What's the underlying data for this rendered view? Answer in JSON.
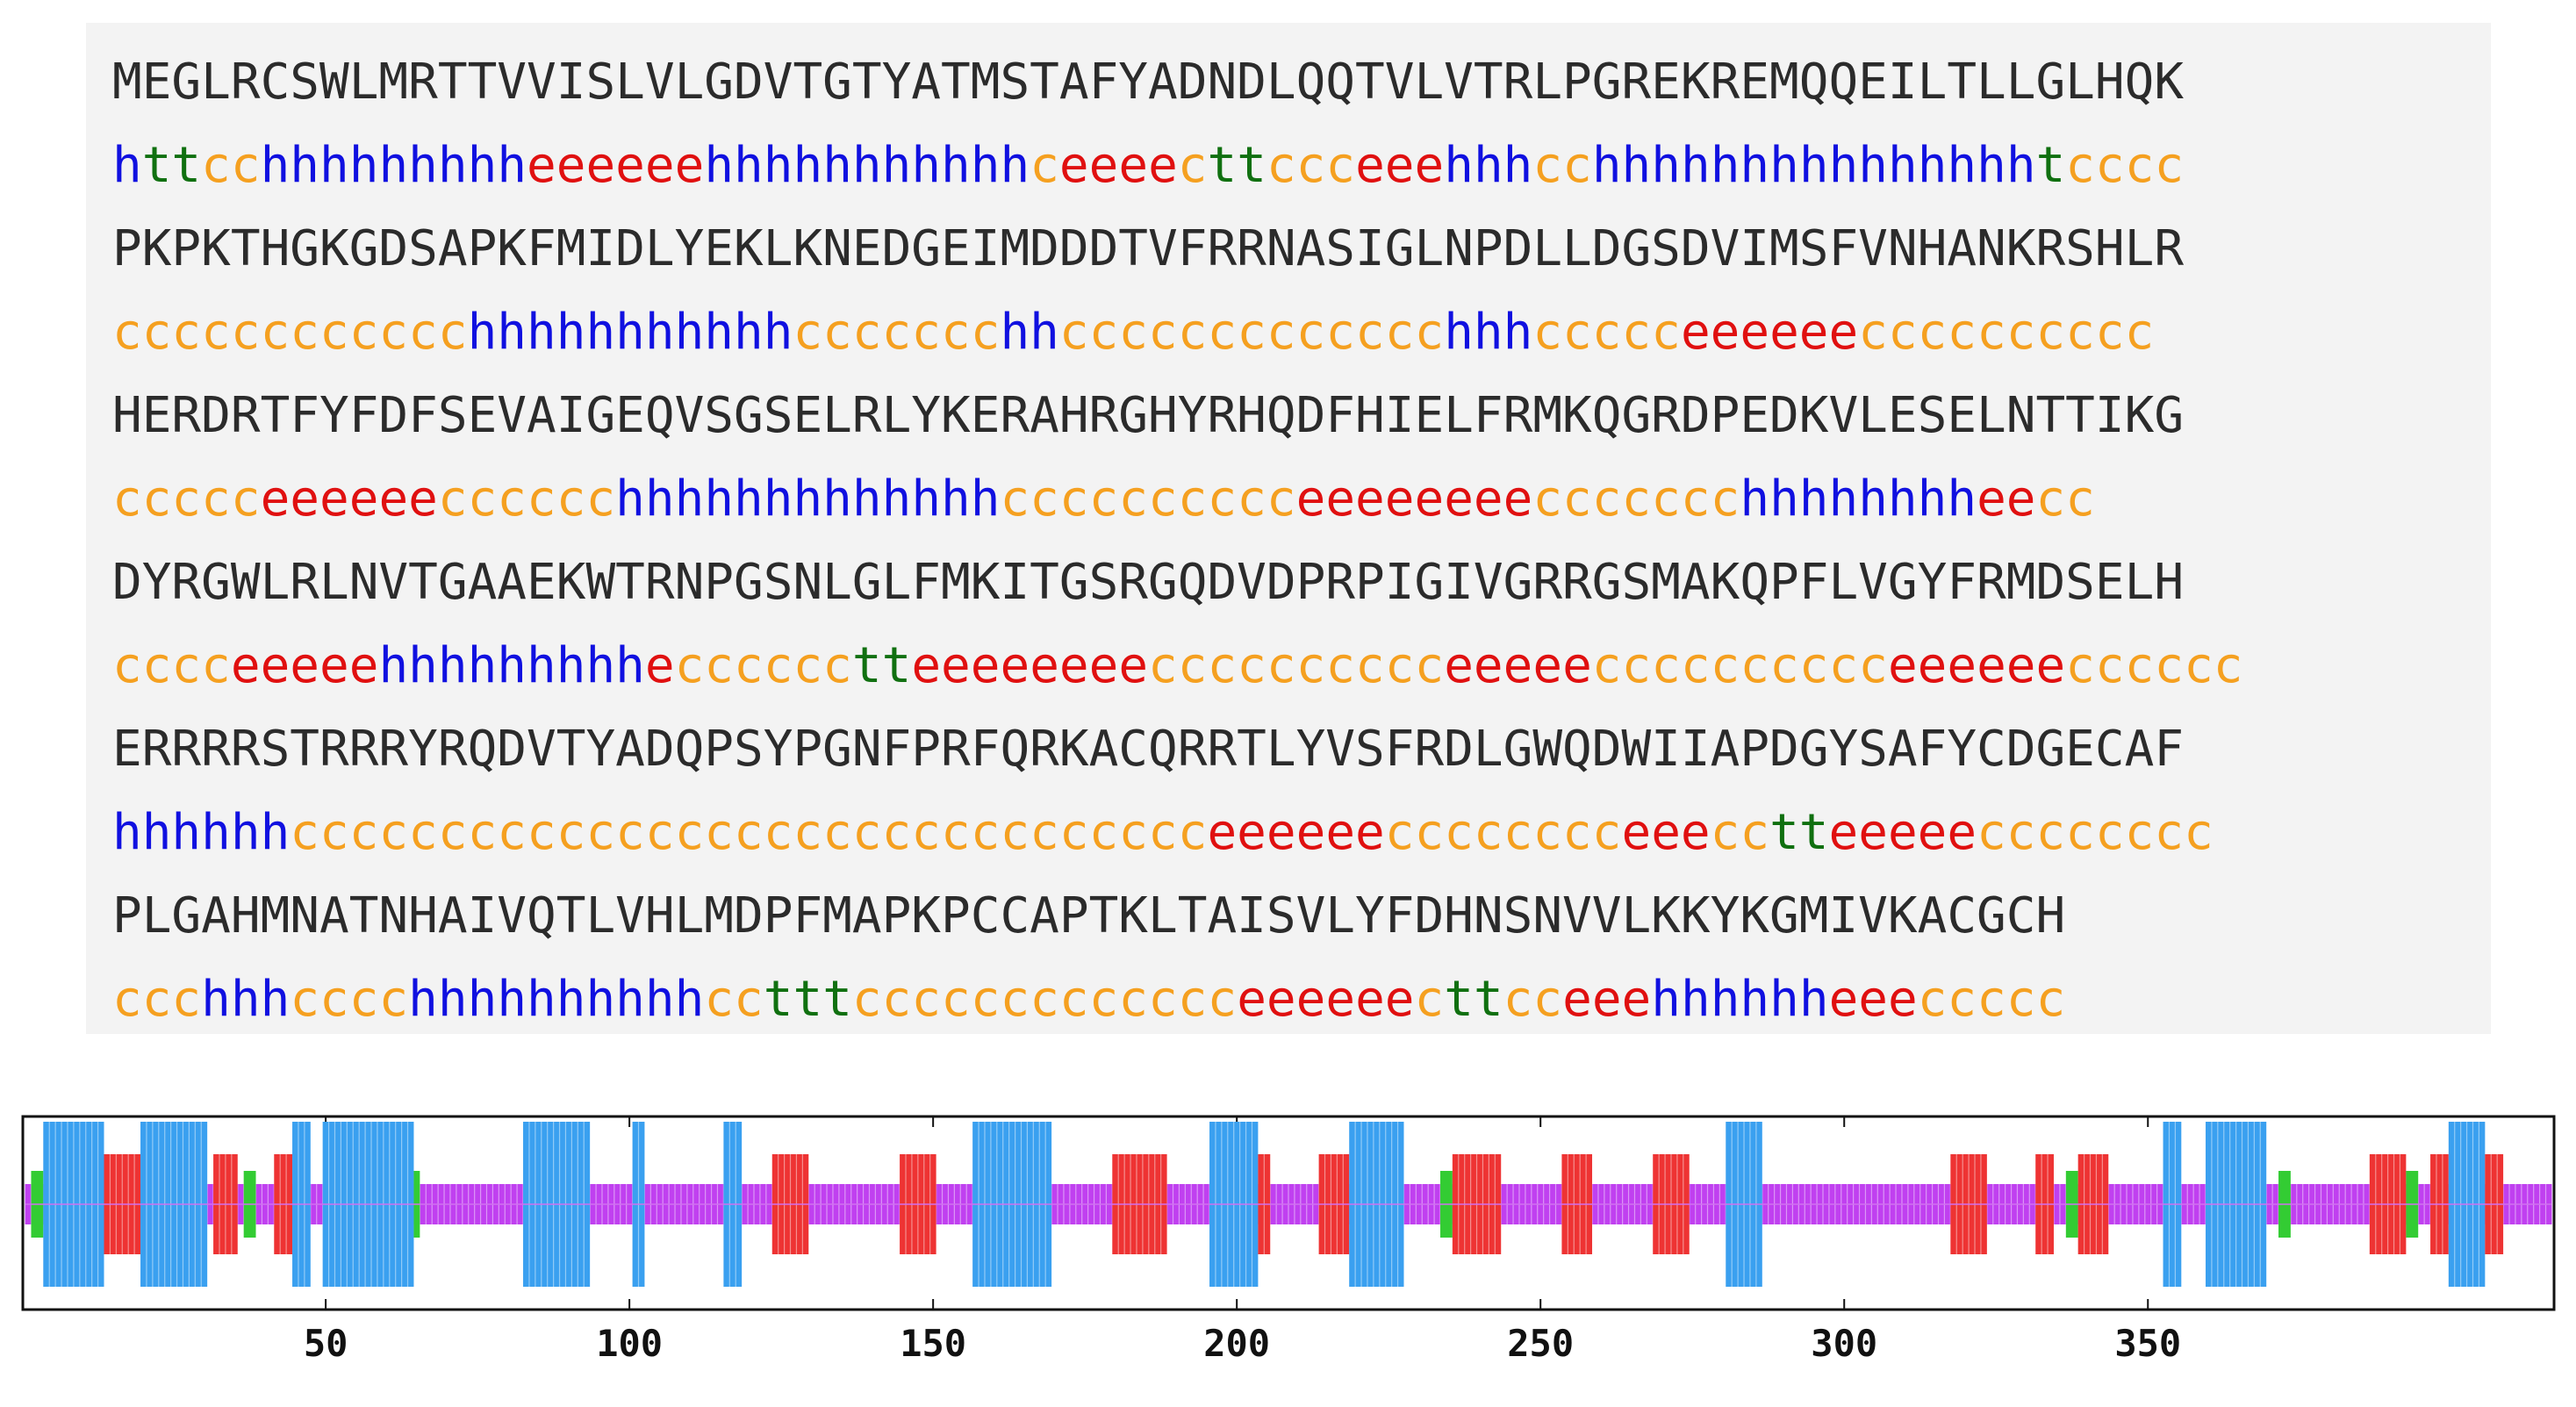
{
  "sequence_rows": [
    "MEGLRCSWLMRTTVVISLVLGDVTGTYATMSTAFYADNDLQQTVLVTRLPGREKREMQQEILTLLGLHQK",
    "PKPKTHGKGDSAPKFMIDLYEKLKNEDGEIMDDDTVFRRNASIGLNPDLLDGSDVIMSFVNHANKRSHLR",
    "HERDRTFYFDFSEVAIGEQVSGSELRLYKERAHRGHYRHQDFHIELFRMKQGRDPEDKVLESELNTTIKG",
    "DYRGWLRLNVTGAAEKWTRNPGSNLGLFMKITGSRGQDVDPRPIGIVGRRGSMAKQPFLVGYFRMDSELH",
    "ERRRRSTRRRYRQDVTYADQPSYPGNFPRFQRKACQRRTLYVSFRDLGWQDWIIAPDGYSAFYCDGECAF",
    "PLGAHMNATNHAIVQTLVHLMDPFMAPKPCCAPTKLTAISVLYFDHNSNVVLKKYKGMIVKACGCH"
  ],
  "structure_rows": [
    "httcchhhhhhhhheeeeeehhhhhhhhhhhceeeecttccceeehhhcchhhhhhhhhhhhhhhtcccc",
    "cccccccccccchhhhhhhhhhhccccccchhccccccccccccchhhccccceeeeeecccccccccc",
    "ccccceeeeeecccccchhhhhhhhhhhhhcccccccccceeeeeeeeccccccchhhhhhhheecc",
    "cccceeeeehhhhhhhhhecccccctteeeeeeeecccccccccceeeeecccccccccceeeeeecccccc",
    "hhhhhhccccccccccccccccccccccccccccccceeeeeecccccccceeecctteeeeecccccccc",
    "ccchhhcccchhhhhhhhhhcctttccccccccccccceeeeeecttcceeehhhhhheeeccccc"
  ],
  "legend_colors": {
    "helix": "#1010e0",
    "strand": "#e01010",
    "turn": "#107010",
    "coil": "#f5a020"
  },
  "chart_data": {
    "type": "bar",
    "categories": [
      "helix",
      "strand",
      "turn",
      "coil"
    ],
    "xlim": [
      1,
      416
    ],
    "x_ticks": [
      50,
      100,
      150,
      200,
      250,
      300,
      350
    ],
    "colors": {
      "helix": "#3aa0f0",
      "strand": "#ee3333",
      "turn": "#33cc33",
      "coil": "#c040f0"
    },
    "segments": [
      {
        "type": "coil",
        "start": 1,
        "end": 416
      },
      {
        "type": "turn",
        "start": 2,
        "end": 3
      },
      {
        "type": "helix",
        "start": 4,
        "end": 13
      },
      {
        "type": "strand",
        "start": 14,
        "end": 19
      },
      {
        "type": "helix",
        "start": 20,
        "end": 30
      },
      {
        "type": "strand",
        "start": 32,
        "end": 35
      },
      {
        "type": "turn",
        "start": 37,
        "end": 38
      },
      {
        "type": "strand",
        "start": 42,
        "end": 44
      },
      {
        "type": "helix",
        "start": 45,
        "end": 47
      },
      {
        "type": "helix",
        "start": 50,
        "end": 64
      },
      {
        "type": "turn",
        "start": 65,
        "end": 65
      },
      {
        "type": "helix",
        "start": 83,
        "end": 93
      },
      {
        "type": "helix",
        "start": 101,
        "end": 102
      },
      {
        "type": "helix",
        "start": 116,
        "end": 118
      },
      {
        "type": "strand",
        "start": 124,
        "end": 129
      },
      {
        "type": "strand",
        "start": 145,
        "end": 150
      },
      {
        "type": "helix",
        "start": 157,
        "end": 169
      },
      {
        "type": "strand",
        "start": 180,
        "end": 188
      },
      {
        "type": "helix",
        "start": 196,
        "end": 203
      },
      {
        "type": "strand",
        "start": 204,
        "end": 205
      },
      {
        "type": "strand",
        "start": 214,
        "end": 218
      },
      {
        "type": "helix",
        "start": 219,
        "end": 227
      },
      {
        "type": "turn",
        "start": 234,
        "end": 235
      },
      {
        "type": "strand",
        "start": 236,
        "end": 243
      },
      {
        "type": "strand",
        "start": 254,
        "end": 258
      },
      {
        "type": "strand",
        "start": 269,
        "end": 274
      },
      {
        "type": "helix",
        "start": 281,
        "end": 286
      },
      {
        "type": "strand",
        "start": 318,
        "end": 323
      },
      {
        "type": "strand",
        "start": 332,
        "end": 334
      },
      {
        "type": "turn",
        "start": 337,
        "end": 338
      },
      {
        "type": "strand",
        "start": 339,
        "end": 343
      },
      {
        "type": "helix",
        "start": 353,
        "end": 355
      },
      {
        "type": "helix",
        "start": 360,
        "end": 369
      },
      {
        "type": "turn",
        "start": 372,
        "end": 373
      },
      {
        "type": "strand",
        "start": 387,
        "end": 392
      },
      {
        "type": "turn",
        "start": 393,
        "end": 394
      },
      {
        "type": "strand",
        "start": 397,
        "end": 399
      },
      {
        "type": "helix",
        "start": 400,
        "end": 405
      },
      {
        "type": "strand",
        "start": 406,
        "end": 408
      }
    ]
  }
}
